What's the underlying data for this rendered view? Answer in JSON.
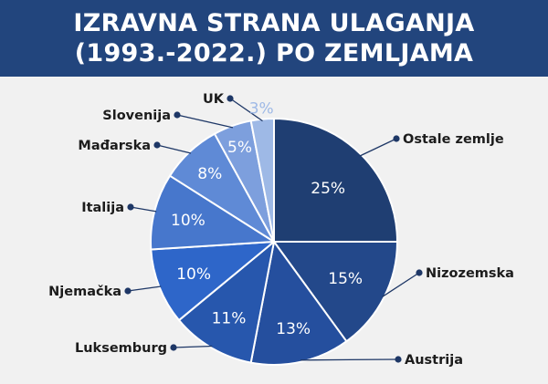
{
  "header": {
    "title_line1": "IZRAVNA STRANA ULAGANJA",
    "title_line2": "(1993.-2022.) PO ZEMLJAMA"
  },
  "colors": {
    "header_bg": "#22457d",
    "background": "#f1f1f1",
    "slice_border": "#ffffff",
    "leader": "#1e3766"
  },
  "chart_data": {
    "type": "pie",
    "title": "IZRAVNA STRANA ULAGANJA (1993.-2022.) PO ZEMLJAMA",
    "unit": "%",
    "slices": [
      {
        "label": "Ostale zemlje",
        "value": 25,
        "value_label": "25%",
        "color": "#1f3e72",
        "text_color": "#ffffff"
      },
      {
        "label": "Nizozemska",
        "value": 15,
        "value_label": "15%",
        "color": "#23488a",
        "text_color": "#ffffff"
      },
      {
        "label": "Austrija",
        "value": 13,
        "value_label": "13%",
        "color": "#254f9e",
        "text_color": "#ffffff"
      },
      {
        "label": "Luksemburg",
        "value": 11,
        "value_label": "11%",
        "color": "#2757ad",
        "text_color": "#ffffff"
      },
      {
        "label": "Njemačka",
        "value": 10,
        "value_label": "10%",
        "color": "#2e66c9",
        "text_color": "#ffffff"
      },
      {
        "label": "Italija",
        "value": 10,
        "value_label": "10%",
        "color": "#4777cc",
        "text_color": "#ffffff"
      },
      {
        "label": "Mađarska",
        "value": 8,
        "value_label": "8%",
        "color": "#5f8ad6",
        "text_color": "#ffffff"
      },
      {
        "label": "Slovenija",
        "value": 5,
        "value_label": "5%",
        "color": "#7d9fdd",
        "text_color": "#ffffff"
      },
      {
        "label": "UK",
        "value": 3,
        "value_label": "3%",
        "color": "#9eb9e6",
        "text_color": "#9eb9e6"
      }
    ]
  }
}
